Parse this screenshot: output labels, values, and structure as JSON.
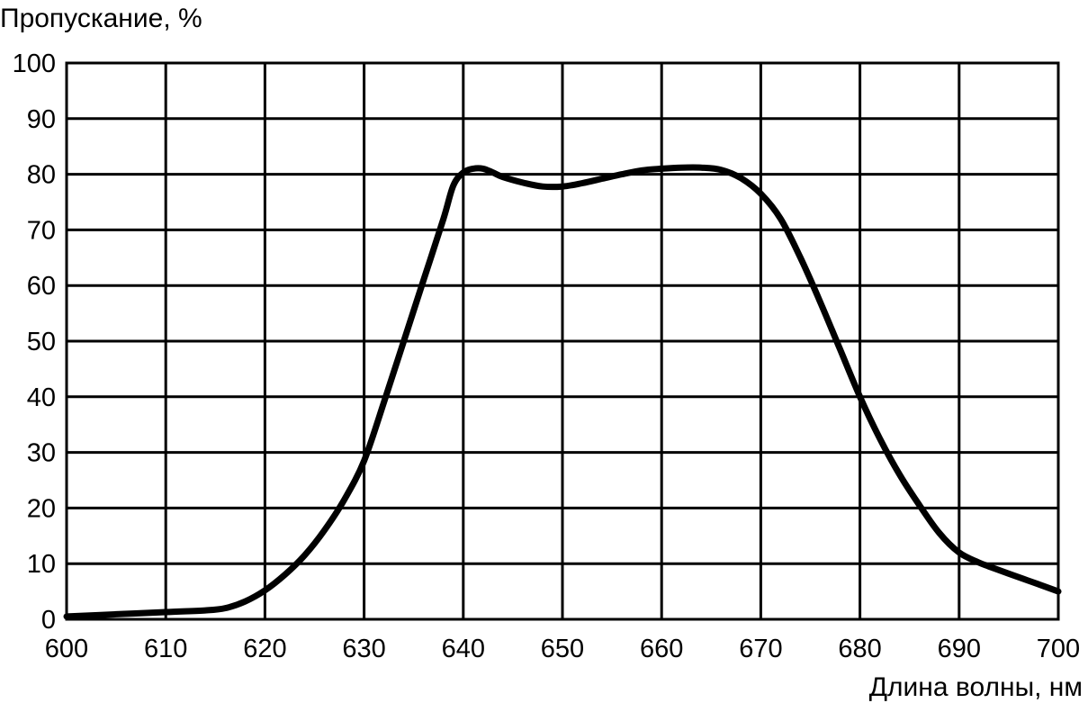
{
  "chart_data": {
    "type": "line",
    "ylabel": "Пропускание, %",
    "xlabel": "Длина волны, нм",
    "xlim": [
      600,
      700
    ],
    "ylim": [
      0,
      100
    ],
    "x_ticks": [
      "600",
      "610",
      "620",
      "630",
      "640",
      "650",
      "660",
      "670",
      "680",
      "690",
      "700"
    ],
    "y_ticks": [
      "0",
      "10",
      "20",
      "30",
      "40",
      "50",
      "60",
      "70",
      "80",
      "90",
      "100"
    ],
    "grid": true,
    "line_color": "#000000",
    "series": [
      {
        "x": [
          600,
          605,
          610,
          614,
          616,
          618,
          620,
          622,
          624,
          626,
          628,
          630,
          632,
          634,
          636,
          638,
          639,
          640,
          641,
          642,
          643,
          644,
          646,
          648,
          650,
          652,
          654,
          656,
          658,
          660,
          662,
          664,
          666,
          668,
          670,
          672,
          674,
          676,
          678,
          680,
          682,
          684,
          686,
          688,
          690,
          692,
          693,
          695,
          698,
          700
        ],
        "y": [
          0.5,
          0.9,
          1.3,
          1.6,
          2.0,
          3.2,
          5.2,
          8.0,
          11.5,
          16.0,
          21.5,
          28.5,
          39.0,
          50.0,
          61.0,
          72.0,
          78.0,
          80.3,
          81.0,
          81.0,
          80.3,
          79.5,
          78.5,
          77.8,
          77.8,
          78.4,
          79.2,
          80.0,
          80.7,
          81.0,
          81.2,
          81.2,
          80.8,
          79.3,
          76.5,
          72.0,
          65.0,
          57.0,
          48.5,
          40.0,
          32.5,
          26.0,
          20.5,
          15.5,
          12.0,
          10.2,
          9.5,
          8.2,
          6.3,
          5.0
        ]
      }
    ]
  }
}
